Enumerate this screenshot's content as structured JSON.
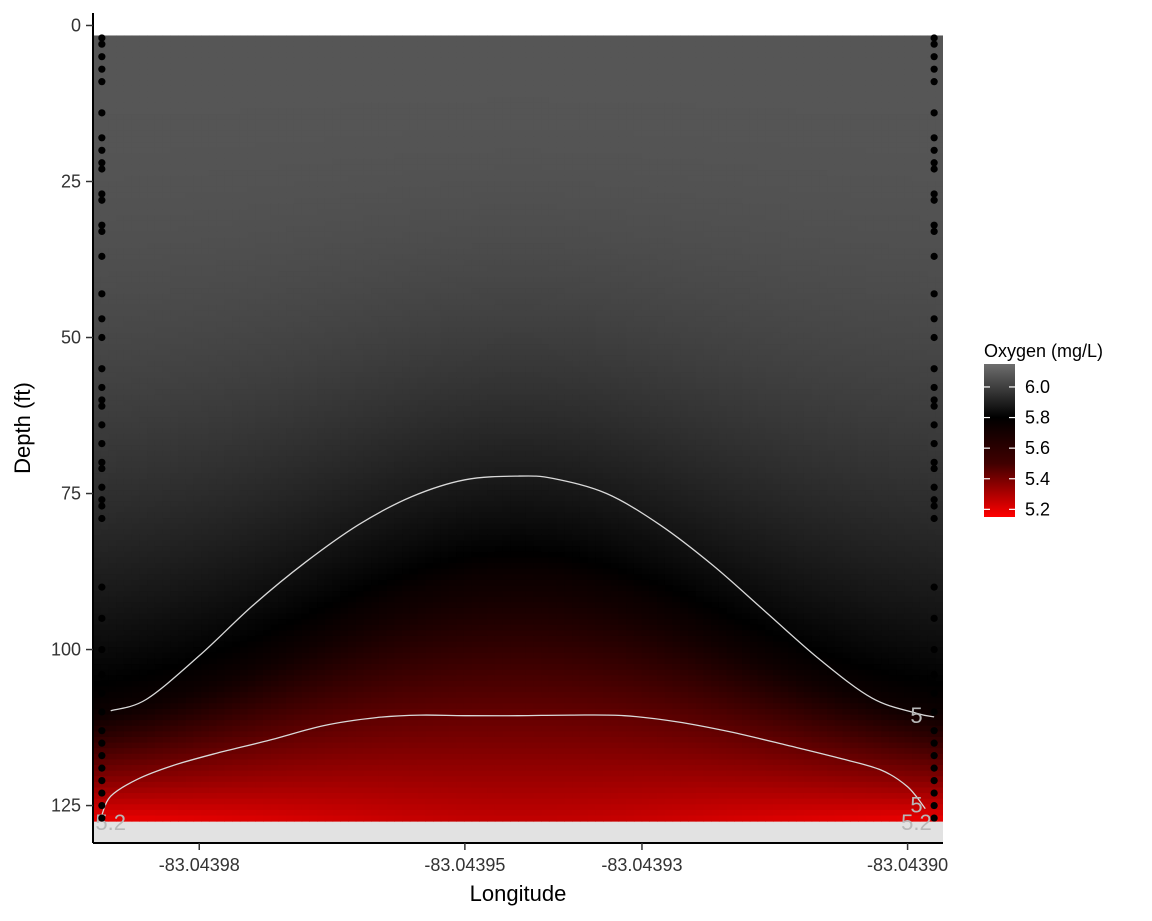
{
  "chart_data": {
    "type": "heatmap",
    "title": "",
    "xlabel": "Longitude",
    "ylabel": "Depth (ft)",
    "x_ticks": [
      -83.04398,
      -83.04395,
      -83.04393,
      -83.0439
    ],
    "x_tick_labels": [
      "-83.04398",
      "-83.04395",
      "-83.04393",
      "-83.04390"
    ],
    "x_range": [
      -83.043992,
      -83.043896
    ],
    "y_ticks": [
      0,
      25,
      50,
      75,
      100,
      125
    ],
    "y_tick_labels": [
      "0",
      "25",
      "50",
      "75",
      "100",
      "125"
    ],
    "y_range": [
      -2,
      131
    ],
    "y_reversed": true,
    "colorscale": {
      "title": "Oxygen (mg/L)",
      "ticks": [
        6.0,
        5.8,
        5.6,
        5.4,
        5.2
      ],
      "tick_labels": [
        "6.0",
        "5.8",
        "5.6",
        "5.4",
        "5.2"
      ],
      "range": [
        5.15,
        6.15
      ],
      "colors": [
        "#ff0000",
        "#000000",
        "#6e6e6e"
      ]
    },
    "field": {
      "x_extent": [
        -83.043992,
        -83.043896
      ],
      "depth_extent": [
        1.6,
        127.5
      ],
      "surface_oxygen": 6.07,
      "bottom_oxygen_edges": 5.18,
      "bottom_oxygen_center": 5.3,
      "dome_min_oxygen_depth_center": 88,
      "dome_min_oxygen_depth_edges": 113
    },
    "contours": [
      {
        "label": "5",
        "points": [
          [
            -83.04399,
            109.8
          ],
          [
            -83.043986,
            108
          ],
          [
            -83.04398,
            101
          ],
          [
            -83.043974,
            93
          ],
          [
            -83.043968,
            86
          ],
          [
            -83.043962,
            80
          ],
          [
            -83.043956,
            75.5
          ],
          [
            -83.04395,
            72.8
          ],
          [
            -83.043944,
            72.2
          ],
          [
            -83.04394,
            72.6
          ],
          [
            -83.043934,
            75
          ],
          [
            -83.043928,
            80
          ],
          [
            -83.043922,
            86.5
          ],
          [
            -83.043916,
            94
          ],
          [
            -83.04391,
            101.5
          ],
          [
            -83.043904,
            107.8
          ],
          [
            -83.043899,
            110.2
          ],
          [
            -83.043897,
            110.8
          ]
        ],
        "label_position": [
          -83.043899,
          110.5
        ]
      },
      {
        "label": "5",
        "points": [
          [
            -83.043991,
            126.5
          ],
          [
            -83.04399,
            123.5
          ],
          [
            -83.043987,
            120.8
          ],
          [
            -83.043983,
            118.6
          ],
          [
            -83.043978,
            116.6
          ],
          [
            -83.043972,
            114.5
          ],
          [
            -83.043966,
            112.2
          ],
          [
            -83.04396,
            110.9
          ],
          [
            -83.043955,
            110.5
          ],
          [
            -83.04395,
            110.6
          ],
          [
            -83.043944,
            110.6
          ],
          [
            -83.043938,
            110.5
          ],
          [
            -83.043932,
            110.6
          ],
          [
            -83.043926,
            111.6
          ],
          [
            -83.04392,
            113.2
          ],
          [
            -83.043914,
            115.2
          ],
          [
            -83.043908,
            117.3
          ],
          [
            -83.043903,
            119.3
          ],
          [
            -83.0439,
            122
          ],
          [
            -83.043898,
            125.5
          ]
        ],
        "label_position": [
          -83.043899,
          124.8
        ]
      }
    ],
    "contour_bottom_labels": [
      {
        "text": "5.2",
        "position": [
          -83.04399,
          127.6
        ]
      },
      {
        "text": "5.2",
        "position": [
          -83.043899,
          127.6
        ]
      }
    ],
    "sample_points": {
      "x": [
        -83.043991,
        -83.043897
      ],
      "depths_left": [
        2,
        3,
        5,
        7,
        9,
        14,
        18,
        20,
        22,
        23,
        27,
        28,
        32,
        33,
        37,
        43,
        47,
        50,
        55,
        58,
        60,
        61,
        64,
        67,
        70,
        71,
        74,
        76,
        77,
        79,
        90,
        95,
        100,
        104,
        107,
        110,
        113,
        115,
        117,
        119,
        121,
        123,
        125,
        127
      ],
      "depths_right": [
        2,
        3,
        5,
        7,
        9,
        14,
        18,
        20,
        22,
        23,
        27,
        28,
        32,
        33,
        37,
        43,
        47,
        50,
        55,
        58,
        60,
        61,
        64,
        67,
        70,
        71,
        74,
        76,
        77,
        79,
        90,
        95,
        100,
        104,
        107,
        110,
        113,
        115,
        117,
        119,
        121,
        123,
        125,
        127
      ]
    },
    "bottom_band": {
      "depth_range": [
        127.6,
        131
      ],
      "color": "#e2e2e2"
    }
  }
}
